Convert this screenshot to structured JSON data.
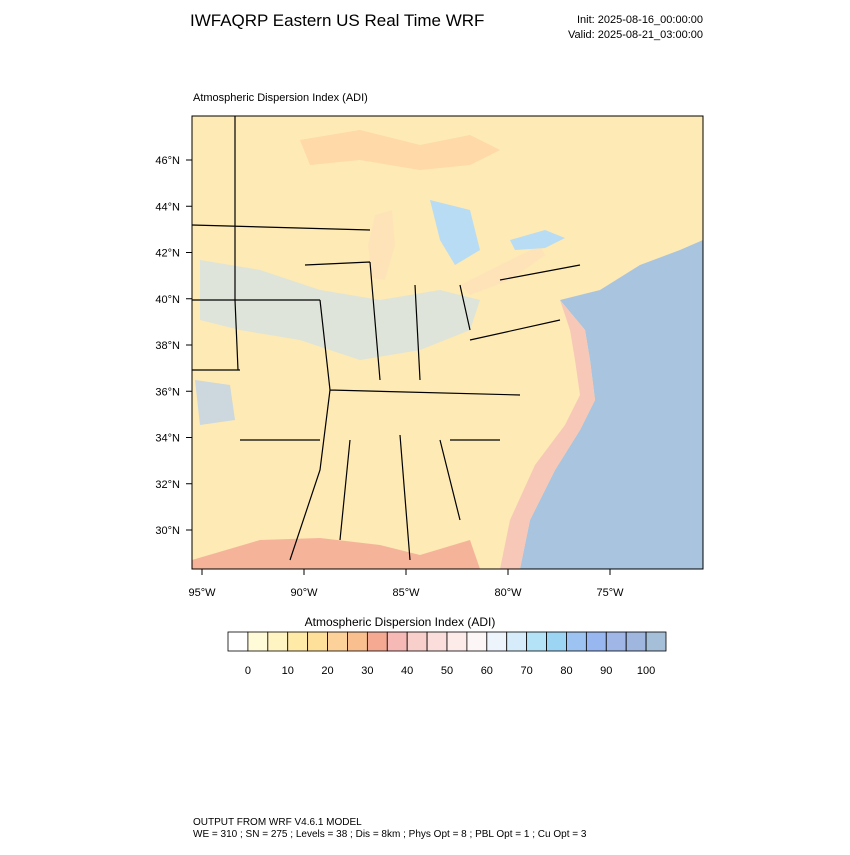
{
  "header": {
    "title": "IWFAQRP Eastern US Real Time WRF",
    "init": "Init: 2025-08-16_00:00:00",
    "valid": "Valid: 2025-08-21_03:00:00"
  },
  "map": {
    "title": "Atmospheric Dispersion Index   (ADI)",
    "lat_labels": [
      "46°N",
      "44°N",
      "42°N",
      "40°N",
      "38°N",
      "36°N",
      "34°N",
      "32°N",
      "30°N"
    ],
    "lon_labels": [
      "95°W",
      "90°W",
      "85°W",
      "80°W",
      "75°W"
    ]
  },
  "colorbar": {
    "title": "Atmospheric Dispersion Index  (ADI)",
    "labels": [
      "0",
      "10",
      "20",
      "30",
      "40",
      "50",
      "60",
      "70",
      "80",
      "90",
      "100"
    ],
    "colors": [
      "#ffffff",
      "#fffbd9",
      "#fff4c2",
      "#ffeaa8",
      "#ffe09a",
      "#fcd19a",
      "#f9bf8f",
      "#f5a892",
      "#f6b9b6",
      "#f9cfcb",
      "#fbdedb",
      "#fcebe9",
      "#fdf6f6",
      "#eef4fc",
      "#d6ecfa",
      "#b4e3f8",
      "#9cd5f3",
      "#9cc3f1",
      "#98b6ef",
      "#a0b6e6",
      "#9fb6de",
      "#a6bfd8"
    ]
  },
  "footer": {
    "line1": "OUTPUT FROM WRF V4.6.1 MODEL",
    "line2": "WE = 310 ; SN = 275 ; Levels = 38 ; Dis = 8km ; Phys Opt = 8 ; PBL Opt = 1 ; Cu Opt = 3"
  }
}
